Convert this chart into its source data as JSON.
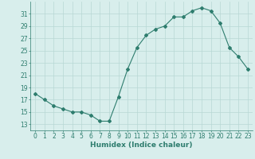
{
  "x": [
    0,
    1,
    2,
    3,
    4,
    5,
    6,
    7,
    8,
    9,
    10,
    11,
    12,
    13,
    14,
    15,
    16,
    17,
    18,
    19,
    20,
    21,
    22,
    23
  ],
  "y": [
    18,
    17,
    16,
    15.5,
    15,
    15,
    14.5,
    13.5,
    13.5,
    17.5,
    22,
    25.5,
    27.5,
    28.5,
    29,
    30.5,
    30.5,
    31.5,
    32,
    31.5,
    29.5,
    25.5,
    24,
    22
  ],
  "line_color": "#2e7d6e",
  "marker": "D",
  "marker_size": 2.0,
  "bg_color": "#d8eeec",
  "grid_color": "#b8d8d4",
  "xlabel": "Humidex (Indice chaleur)",
  "xlim": [
    -0.5,
    23.5
  ],
  "ylim": [
    12,
    33
  ],
  "yticks": [
    13,
    15,
    17,
    19,
    21,
    23,
    25,
    27,
    29,
    31
  ],
  "xticks": [
    0,
    1,
    2,
    3,
    4,
    5,
    6,
    7,
    8,
    9,
    10,
    11,
    12,
    13,
    14,
    15,
    16,
    17,
    18,
    19,
    20,
    21,
    22,
    23
  ],
  "tick_color": "#2e7d6e",
  "label_color": "#2e7d6e",
  "tick_fontsize": 5.5,
  "xlabel_fontsize": 6.5
}
